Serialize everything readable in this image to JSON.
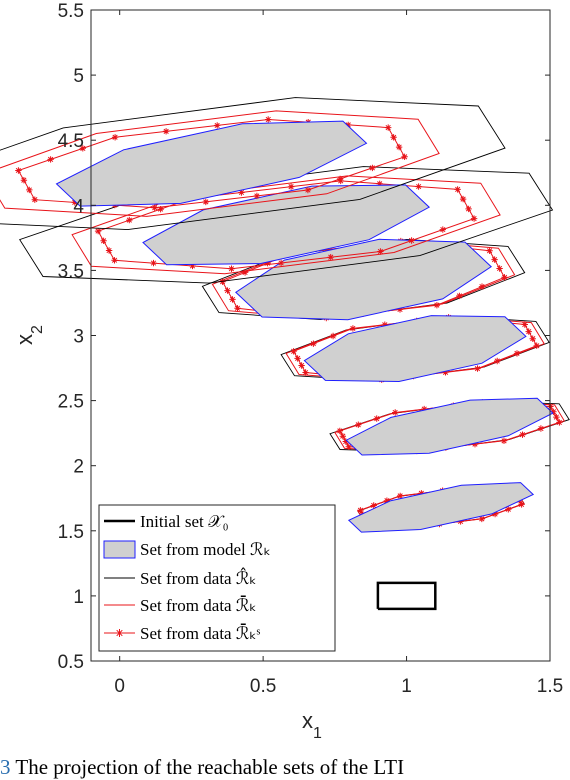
{
  "chart_data": {
    "type": "line",
    "xlabel_base": "x",
    "xlabel_sub": "1",
    "ylabel_base": "x",
    "ylabel_sub": "2",
    "xlim": [
      -0.1,
      1.5
    ],
    "ylim": [
      0.5,
      5.5
    ],
    "xticks": [
      "0",
      "0.5",
      "1",
      "1.5"
    ],
    "yticks": [
      "0.5",
      "1",
      "1.5",
      "2",
      "2.5",
      "3",
      "3.5",
      "4",
      "4.5",
      "5",
      "5.5"
    ],
    "grid": false,
    "legend_position": "bottom-left",
    "legend": [
      {
        "label": "Initial set 𝒳₀",
        "style": "thick-black-line"
      },
      {
        "label": "Set from model ℛₖ",
        "style": "blue-edged-gray-patch"
      },
      {
        "label": "Set from data ℛ̂ₖ",
        "style": "thin-black-line"
      },
      {
        "label": "Set from data ℛ̄ₖ",
        "style": "red-line"
      },
      {
        "label": "Set from data ℛ̄ₖˢ",
        "style": "red-line-star-markers"
      }
    ],
    "initial_set": {
      "x": [
        0.9,
        1.1,
        1.1,
        0.9,
        0.9
      ],
      "y": [
        0.9,
        0.9,
        1.1,
        1.1,
        0.9
      ]
    },
    "reachable_sets": [
      {
        "cx": 1.12,
        "cy": 1.68,
        "model": [
          0.45,
          0.24,
          0.36
        ],
        "data_hat": [
          0.28,
          0.24,
          0.31
        ],
        "data_bar": [
          0.27,
          0.24,
          0.31
        ],
        "data_bar_s": [
          0.26,
          0.24,
          0.3
        ]
      },
      {
        "cx": 1.15,
        "cy": 2.3,
        "model": [
          0.45,
          0.3,
          0.4
        ],
        "data_hat": [
          0.28,
          0.3,
          0.45
        ],
        "data_bar": [
          0.27,
          0.3,
          0.43
        ],
        "data_bar_s": [
          0.25,
          0.3,
          0.41
        ]
      },
      {
        "cx": 1.03,
        "cy": 2.9,
        "model": [
          0.45,
          0.4,
          0.42
        ],
        "data_hat": [
          0.28,
          0.4,
          0.5
        ],
        "data_bar": [
          0.27,
          0.4,
          0.48
        ],
        "data_bar_s": [
          0.25,
          0.4,
          0.45
        ]
      },
      {
        "cx": 0.85,
        "cy": 3.43,
        "model": [
          0.45,
          0.5,
          0.48
        ],
        "data_hat": [
          0.28,
          0.5,
          0.6
        ],
        "data_bar": [
          0.27,
          0.5,
          0.56
        ],
        "data_bar_s": [
          0.25,
          0.5,
          0.52
        ]
      },
      {
        "cx": 0.58,
        "cy": 3.85,
        "model": [
          0.45,
          0.45,
          0.55
        ],
        "data_hat": [
          0.28,
          0.7,
          1.0
        ],
        "data_bar": [
          0.27,
          0.6,
          0.8
        ],
        "data_bar_s": [
          0.25,
          0.55,
          0.7
        ]
      },
      {
        "cx": 0.32,
        "cy": 4.32,
        "model": [
          0.45,
          0.45,
          0.6
        ],
        "data_hat": [
          0.28,
          0.8,
          1.1
        ],
        "data_bar": [
          0.27,
          0.65,
          0.85
        ],
        "data_bar_s": [
          0.25,
          0.55,
          0.72
        ]
      }
    ]
  },
  "caption": {
    "number": "3",
    "text": " The projection of the reachable sets of the LTI"
  }
}
